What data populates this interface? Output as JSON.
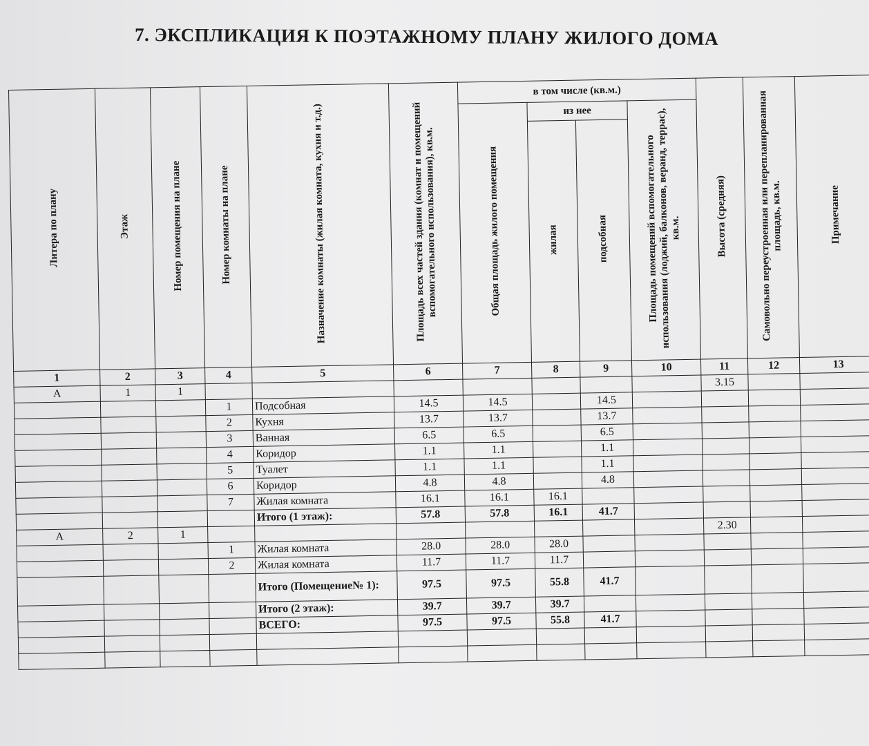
{
  "title": "7.   ЭКСПЛИКАЦИЯ К ПОЭТАЖНОМУ ПЛАНУ ЖИЛОГО ДОМА",
  "headers": {
    "c1": "Литера по плану",
    "c2": "Этаж",
    "c3": "Номер помещения на плане",
    "c4": "Номер комнаты на плане",
    "c5": "Назначение комнаты (жилая комната, кухня и т.д.)",
    "c6": "Площадь всех частей здания (комнат и помещений вспомогательного использования), кв.м.",
    "group": "в том числе (кв.м.)",
    "c7": "Общая площадь жилого помещения",
    "subgroup": "из нее",
    "c8": "жилая",
    "c9": "подсобная",
    "c10": "Площадь помещений вспомогательного использования (лоджий, балконов, веранд, террас), кв.м.",
    "c11": "Высота (средняя)",
    "c12": "Самовольно переустроенная или перепланированная площадь, кв.м.",
    "c13": "Примечание"
  },
  "col_numbers": [
    "1",
    "2",
    "3",
    "4",
    "5",
    "6",
    "7",
    "8",
    "9",
    "10",
    "11",
    "12",
    "13"
  ],
  "rows": [
    [
      "А",
      "1",
      "1",
      "",
      "",
      "",
      "",
      "",
      "",
      "",
      "3.15",
      "",
      ""
    ],
    [
      "",
      "",
      "",
      "1",
      "Подсобная",
      "14.5",
      "14.5",
      "",
      "14.5",
      "",
      "",
      "",
      ""
    ],
    [
      "",
      "",
      "",
      "2",
      "Кухня",
      "13.7",
      "13.7",
      "",
      "13.7",
      "",
      "",
      "",
      ""
    ],
    [
      "",
      "",
      "",
      "3",
      "Ванная",
      "6.5",
      "6.5",
      "",
      "6.5",
      "",
      "",
      "",
      ""
    ],
    [
      "",
      "",
      "",
      "4",
      "Коридор",
      "1.1",
      "1.1",
      "",
      "1.1",
      "",
      "",
      "",
      ""
    ],
    [
      "",
      "",
      "",
      "5",
      "Туалет",
      "1.1",
      "1.1",
      "",
      "1.1",
      "",
      "",
      "",
      ""
    ],
    [
      "",
      "",
      "",
      "6",
      "Коридор",
      "4.8",
      "4.8",
      "",
      "4.8",
      "",
      "",
      "",
      ""
    ],
    [
      "",
      "",
      "",
      "7",
      "Жилая комната",
      "16.1",
      "16.1",
      "16.1",
      "",
      "",
      "",
      "",
      ""
    ],
    [
      "",
      "",
      "",
      "",
      "Итого (1 этаж):",
      "57.8",
      "57.8",
      "16.1",
      "41.7",
      "",
      "",
      "",
      ""
    ],
    [
      "А",
      "2",
      "1",
      "",
      "",
      "",
      "",
      "",
      "",
      "",
      "2.30",
      "",
      ""
    ],
    [
      "",
      "",
      "",
      "1",
      "Жилая комната",
      "28.0",
      "28.0",
      "28.0",
      "",
      "",
      "",
      "",
      ""
    ],
    [
      "",
      "",
      "",
      "2",
      "Жилая комната",
      "11.7",
      "11.7",
      "11.7",
      "",
      "",
      "",
      "",
      ""
    ],
    [
      "",
      "",
      "",
      "",
      "Итого (Помещение№ 1):",
      "97.5",
      "97.5",
      "55.8",
      "41.7",
      "",
      "",
      "",
      ""
    ],
    [
      "",
      "",
      "",
      "",
      "Итого (2 этаж):",
      "39.7",
      "39.7",
      "39.7",
      "",
      "",
      "",
      "",
      ""
    ],
    [
      "",
      "",
      "",
      "",
      "ВСЕГО:",
      "97.5",
      "97.5",
      "55.8",
      "41.7",
      "",
      "",
      "",
      ""
    ]
  ]
}
